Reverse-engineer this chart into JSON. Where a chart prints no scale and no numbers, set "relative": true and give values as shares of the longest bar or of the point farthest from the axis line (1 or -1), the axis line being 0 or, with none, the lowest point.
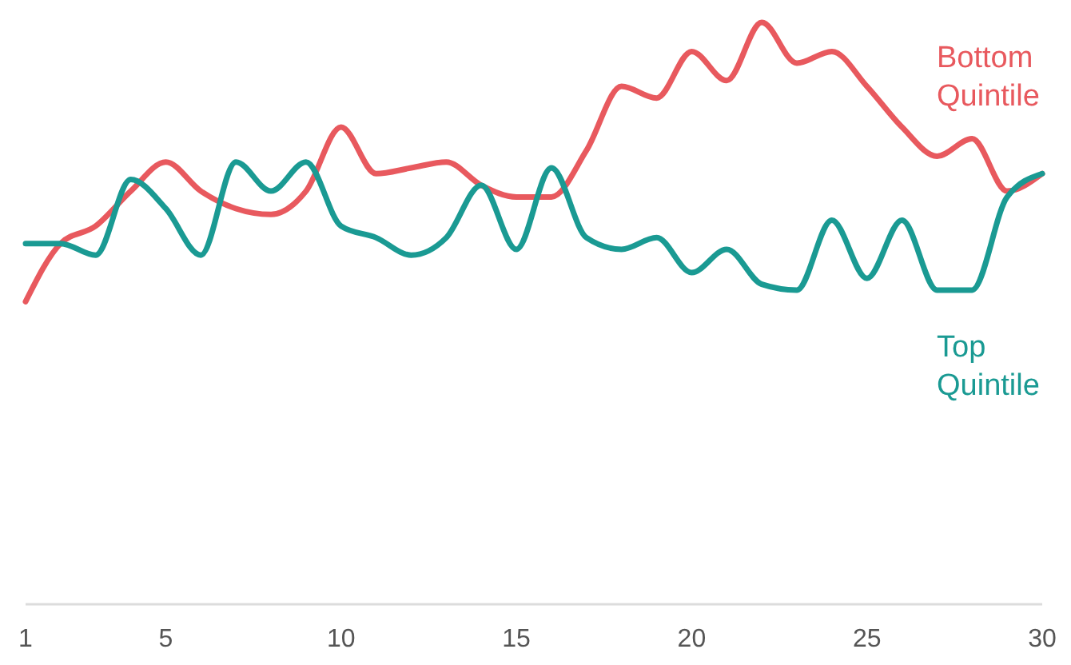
{
  "chart_data": {
    "type": "line",
    "relative": true,
    "x": [
      1,
      2,
      3,
      4,
      5,
      6,
      7,
      8,
      9,
      10,
      11,
      12,
      13,
      14,
      15,
      16,
      17,
      18,
      19,
      20,
      21,
      22,
      23,
      24,
      25,
      26,
      27,
      28,
      29,
      30
    ],
    "xlim": [
      1,
      30
    ],
    "xticks": [
      1,
      5,
      10,
      15,
      20,
      25,
      30
    ],
    "grid": false,
    "legend": false,
    "series": [
      {
        "name": "Bottom Quintile",
        "color": "#e8595e",
        "values": [
          0.52,
          0.62,
          0.65,
          0.71,
          0.76,
          0.71,
          0.68,
          0.67,
          0.71,
          0.82,
          0.74,
          0.75,
          0.76,
          0.72,
          0.7,
          0.7,
          0.78,
          0.89,
          0.87,
          0.95,
          0.9,
          1,
          0.93,
          0.95,
          0.89,
          0.82,
          0.77,
          0.8,
          0.71,
          0.74
        ]
      },
      {
        "name": "Top Quintile",
        "color": "#1a9a93",
        "values": [
          0.62,
          0.62,
          0.6,
          0.73,
          0.68,
          0.6,
          0.76,
          0.71,
          0.76,
          0.65,
          0.63,
          0.6,
          0.63,
          0.72,
          0.61,
          0.75,
          0.63,
          0.61,
          0.63,
          0.57,
          0.61,
          0.55,
          0.54,
          0.66,
          0.56,
          0.66,
          0.54,
          0.54,
          0.7,
          0.74
        ]
      }
    ]
  }
}
